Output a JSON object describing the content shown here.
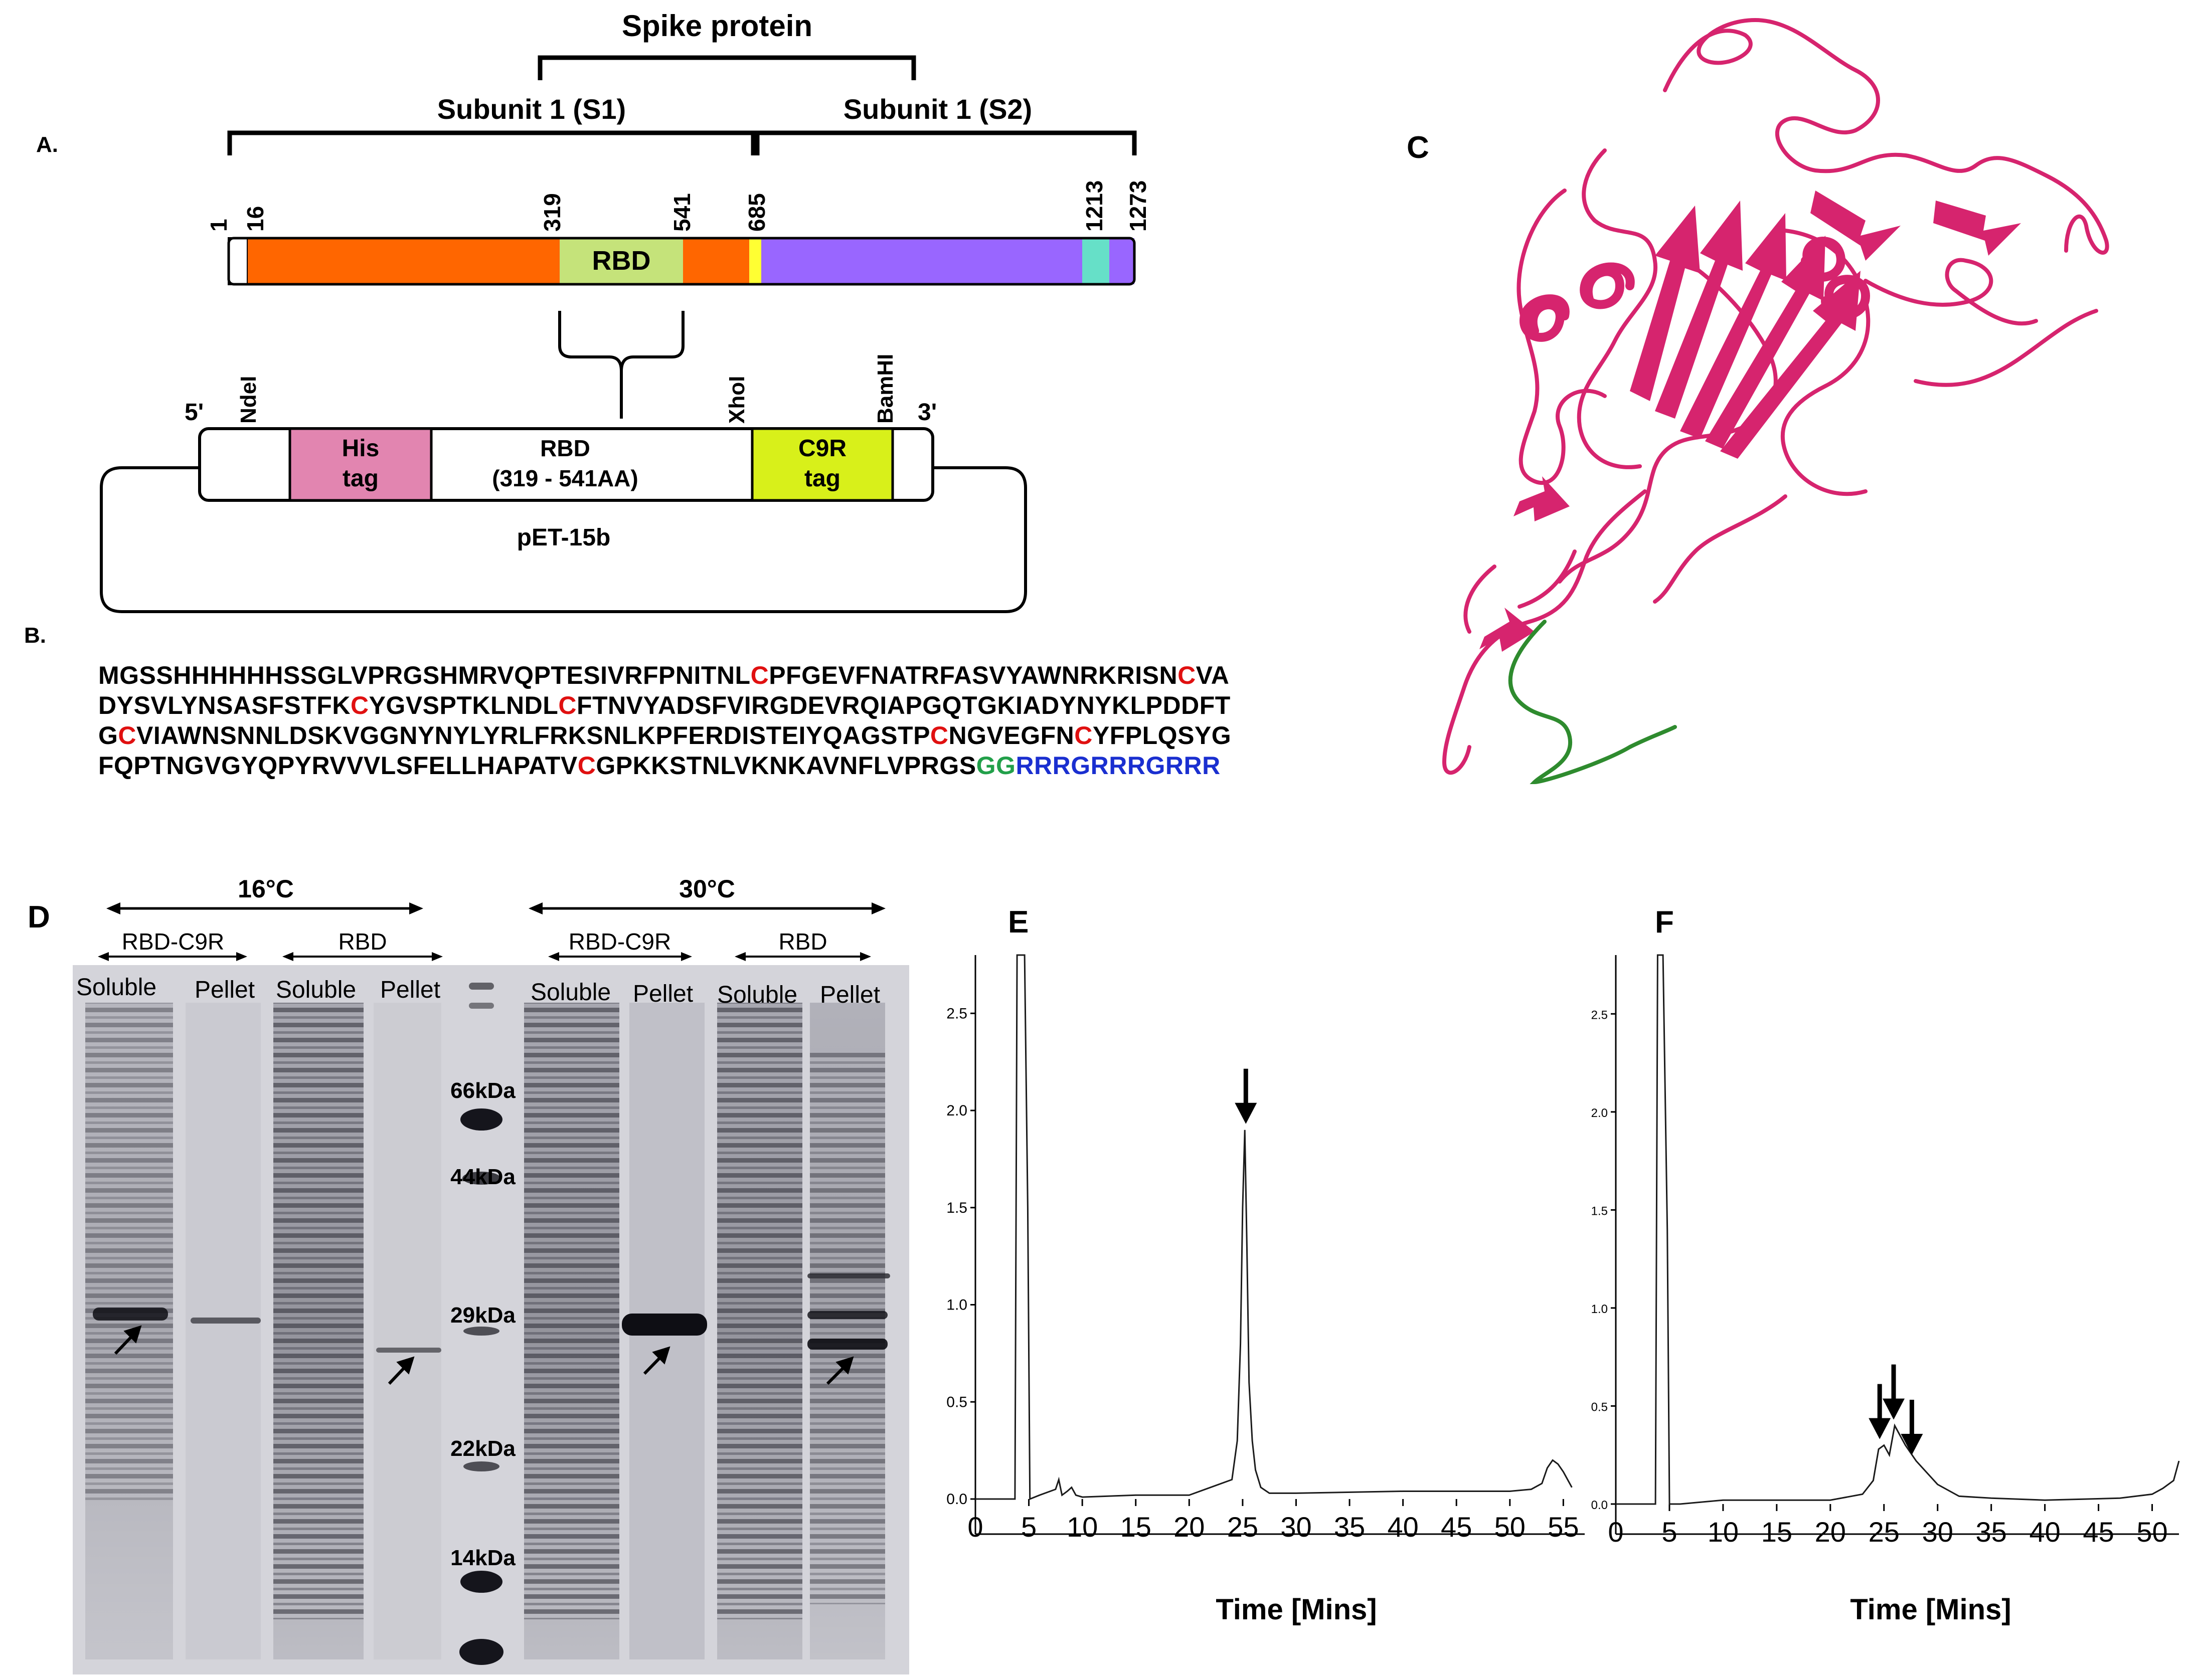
{
  "panel_labels": {
    "a": "A.",
    "b": "B.",
    "c": "C",
    "d": "D",
    "e": "E",
    "f": "F"
  },
  "panel_a": {
    "spike_title": "Spike protein",
    "s1_label": "Subunit 1 (S1)",
    "s2_label": "Subunit 1 (S2)",
    "positions": [
      "1",
      "16",
      "319",
      "541",
      "685",
      "1213",
      "1273"
    ],
    "rbd_label": "RBD",
    "construct": {
      "five_prime": "5'",
      "three_prime": "3'",
      "site_ndei": "NdeI",
      "site_xhoi": "XhoI",
      "site_bamhi": "BamHI",
      "his_tag_line1": "His",
      "his_tag_line2": "tag",
      "rbd_line1": "RBD",
      "rbd_line2": "(319 - 541AA)",
      "c9r_line1": "C9R",
      "c9r_line2": "tag",
      "vector": "pET-15b"
    },
    "colors": {
      "signal": "#ffffff",
      "s1": "#ff6600",
      "rbd": "#c5e37a",
      "cleavage": "#ffff33",
      "s2": "#9966ff",
      "tm": "#66e0c8",
      "his": "#e285b0",
      "c9r": "#d8f01a"
    }
  },
  "panel_b": {
    "sequence_lines": [
      [
        [
          "t",
          "MGSSHHHHHHSSGLVPRGSHMRVQPTESIVRFPNITNL"
        ],
        [
          "c",
          "C"
        ],
        [
          "t",
          "PFGEVFNATRFASVYAWNRKRISN"
        ],
        [
          "c",
          "C"
        ],
        [
          "t",
          "VA"
        ]
      ],
      [
        [
          "t",
          "DYSVLYNSASFSTFK"
        ],
        [
          "c",
          "C"
        ],
        [
          "t",
          "YGVSPTKLNDL"
        ],
        [
          "c",
          "C"
        ],
        [
          "t",
          "FTNVYADSFVIRGDEVRQIAPGQTGKIADYNYKLPDDFT"
        ]
      ],
      [
        [
          "t",
          "G"
        ],
        [
          "c",
          "C"
        ],
        [
          "t",
          "VIAWNSNNLDSKVGGNYNYLYRLFRKSNLKPFERDISTEIYQAGSTP"
        ],
        [
          "c",
          "C"
        ],
        [
          "t",
          "NGVEGFN"
        ],
        [
          "c",
          "C"
        ],
        [
          "t",
          "YFPLQSYG"
        ]
      ],
      [
        [
          "t",
          "FQPTNGVGYQPYRVVVLSFELLHAPATV"
        ],
        [
          "c",
          "C"
        ],
        [
          "t",
          "GPKKSTNLVKNKAVNFLVPRGS"
        ],
        [
          "g",
          "GG"
        ],
        [
          "r",
          "RRRGRRRGRRR"
        ]
      ]
    ],
    "colors": {
      "cysteine": "#e01010",
      "linker": "#22a04a",
      "c9r": "#1a2fd0"
    }
  },
  "panel_c": {
    "structure_color": "#d6246e",
    "tag_color": "#2e8b2e"
  },
  "panel_d": {
    "temp_16": "16°C",
    "temp_30": "30°C",
    "group_rbd_c9r": "RBD-C9R",
    "group_rbd": "RBD",
    "lane_soluble": "Soluble",
    "lane_pellet": "Pellet",
    "markers": [
      "66kDa",
      "44kDa",
      "29kDa",
      "22kDa",
      "14kDa"
    ]
  },
  "panel_e": {
    "y_ticks": [
      "0.0",
      "0.5",
      "1.0",
      "1.5",
      "2.0",
      "2.5"
    ],
    "x_ticks": [
      "0",
      "5",
      "10",
      "15",
      "20",
      "25",
      "30",
      "35",
      "40",
      "45",
      "50",
      "55"
    ],
    "xlabel": "Time [Mins]"
  },
  "panel_f": {
    "y_ticks": [
      "0.0",
      "0.5",
      "1.0",
      "1.5",
      "2.0",
      "2.5"
    ],
    "x_ticks": [
      "0",
      "5",
      "10",
      "15",
      "20",
      "25",
      "30",
      "35",
      "40",
      "45",
      "50"
    ],
    "xlabel": "Time [Mins]"
  },
  "chart_data": [
    {
      "type": "line",
      "panel": "E",
      "title": "",
      "xlabel": "Time [Mins]",
      "ylabel": "",
      "xlim": [
        0,
        57
      ],
      "ylim": [
        0,
        2.8
      ],
      "x_ticks": [
        0,
        5,
        10,
        15,
        20,
        25,
        30,
        35,
        40,
        45,
        50,
        55
      ],
      "y_ticks": [
        0.0,
        0.5,
        1.0,
        1.5,
        2.0,
        2.5
      ],
      "series": [
        {
          "x": [
            0,
            3.7,
            3.9,
            4.1,
            4.6,
            4.9,
            5.1,
            6,
            7.5,
            7.8,
            8.1,
            8.6,
            9,
            9.4,
            10,
            15,
            20,
            24,
            24.5,
            24.8,
            25.0,
            25.2,
            25.4,
            25.6,
            25.9,
            26.2,
            26.7,
            27.5,
            30,
            40,
            50,
            52,
            53,
            53.5,
            54,
            54.5,
            55,
            55.5,
            55.8
          ],
          "y": [
            0.0,
            0.0,
            2.8,
            2.8,
            2.8,
            1.5,
            0.0,
            0.02,
            0.05,
            0.1,
            0.02,
            0.04,
            0.06,
            0.02,
            0.01,
            0.02,
            0.02,
            0.1,
            0.3,
            0.8,
            1.5,
            1.9,
            1.3,
            0.6,
            0.3,
            0.15,
            0.06,
            0.03,
            0.03,
            0.04,
            0.04,
            0.05,
            0.08,
            0.16,
            0.2,
            0.18,
            0.14,
            0.09,
            0.06
          ]
        }
      ],
      "arrows_at": [
        25.3
      ]
    },
    {
      "type": "line",
      "panel": "F",
      "title": "",
      "xlabel": "Time [Mins]",
      "ylabel": "",
      "xlim": [
        0,
        52.5
      ],
      "ylim": [
        0,
        2.8
      ],
      "x_ticks": [
        0,
        5,
        10,
        15,
        20,
        25,
        30,
        35,
        40,
        45,
        50
      ],
      "y_ticks": [
        0.0,
        0.5,
        1.0,
        1.5,
        2.0,
        2.5
      ],
      "series": [
        {
          "x": [
            0,
            3.7,
            3.9,
            4.4,
            4.8,
            5.0,
            6,
            10,
            20,
            23,
            24,
            24.5,
            25,
            25.5,
            26,
            26.5,
            27,
            28,
            30,
            32,
            35,
            40,
            47,
            50,
            51,
            52,
            52.5
          ],
          "y": [
            0.0,
            0.0,
            2.8,
            2.8,
            1.4,
            0.0,
            0.0,
            0.02,
            0.02,
            0.05,
            0.12,
            0.28,
            0.3,
            0.25,
            0.4,
            0.35,
            0.3,
            0.22,
            0.1,
            0.04,
            0.03,
            0.02,
            0.03,
            0.05,
            0.08,
            0.12,
            0.22
          ]
        }
      ],
      "arrows_at": [
        24.6,
        25.9,
        27.6
      ]
    }
  ]
}
